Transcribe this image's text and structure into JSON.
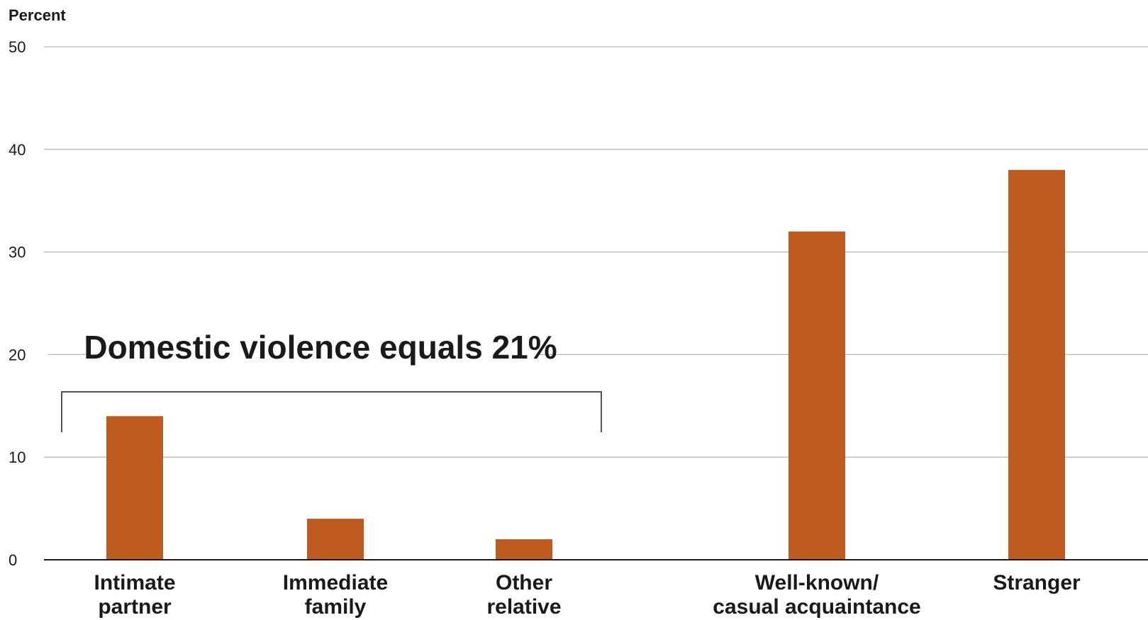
{
  "chart_data": {
    "type": "bar",
    "ylabel": "Percent",
    "ylim": [
      0,
      50
    ],
    "yticks": [
      0,
      10,
      20,
      30,
      40,
      50
    ],
    "grid": true,
    "categories": [
      [
        "Intimate",
        "partner"
      ],
      [
        "Immediate",
        "family"
      ],
      [
        "Other",
        "relative"
      ],
      [
        "Well-known/",
        "casual acquaintance"
      ],
      [
        "Stranger"
      ]
    ],
    "values": [
      14,
      4,
      2,
      32,
      38
    ],
    "annotation": {
      "text": "Domestic violence equals 21%",
      "spans_categories": [
        0,
        2
      ]
    },
    "colors": {
      "bar": "#bf5b20",
      "grid": "#b8b8b8",
      "axis": "#1a1a1a",
      "text": "#1a1a1a"
    }
  }
}
